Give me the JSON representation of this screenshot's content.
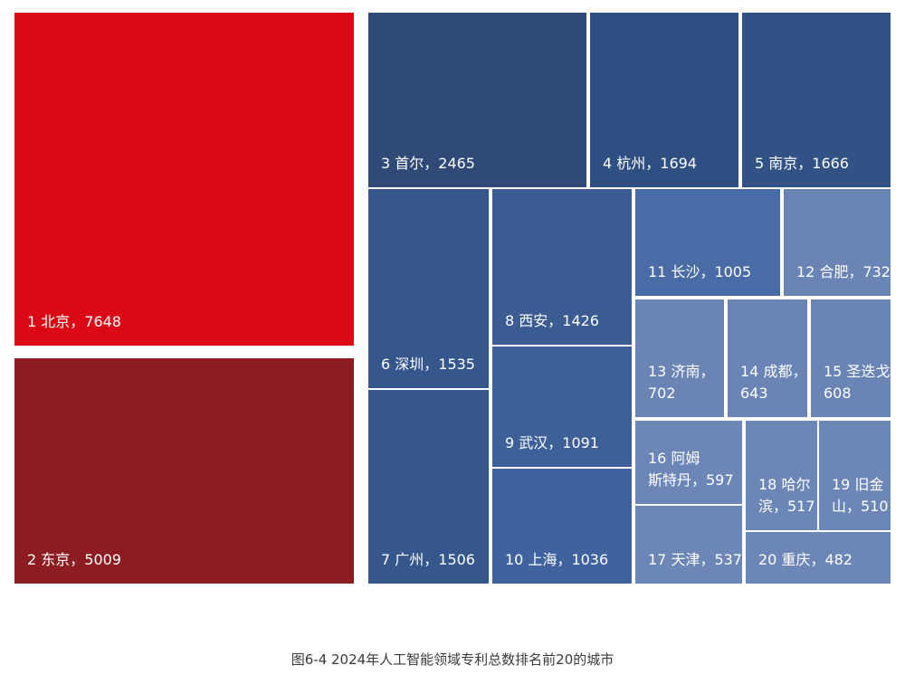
{
  "chart_data": {
    "type": "treemap",
    "title": "图6-4 2024年人工智能领域专利总数排名前20的城市",
    "items": [
      {
        "rank": 1,
        "city": "北京",
        "value": 7648,
        "color": "#db0816"
      },
      {
        "rank": 2,
        "city": "东京",
        "value": 5009,
        "color": "#8c1c22"
      },
      {
        "rank": 3,
        "city": "首尔",
        "value": 2465,
        "color": "#2f4a77"
      },
      {
        "rank": 4,
        "city": "杭州",
        "value": 1694,
        "color": "#2f4f82"
      },
      {
        "rank": 5,
        "city": "南京",
        "value": 1666,
        "color": "#325285"
      },
      {
        "rank": 6,
        "city": "深圳",
        "value": 1535,
        "color": "#36578b"
      },
      {
        "rank": 7,
        "city": "广州",
        "value": 1506,
        "color": "#36578b"
      },
      {
        "rank": 8,
        "city": "西安",
        "value": 1426,
        "color": "#3a5c92"
      },
      {
        "rank": 9,
        "city": "武汉",
        "value": 1091,
        "color": "#3d6099"
      },
      {
        "rank": 10,
        "city": "上海",
        "value": 1036,
        "color": "#4063a0"
      },
      {
        "rank": 11,
        "city": "长沙",
        "value": 1005,
        "color": "#4a6ca6"
      },
      {
        "rank": 12,
        "city": "合肥",
        "value": 732,
        "color": "#6a84b6"
      },
      {
        "rank": 13,
        "city": "济南",
        "value": 702,
        "color": "#6a84b6"
      },
      {
        "rank": 14,
        "city": "成都",
        "value": 643,
        "color": "#6a84b6"
      },
      {
        "rank": 15,
        "city": "圣迭戈",
        "value": 608,
        "color": "#6a84b6"
      },
      {
        "rank": 16,
        "city": "阿姆斯特丹",
        "value": 597,
        "color": "#6d86b8"
      },
      {
        "rank": 17,
        "city": "天津",
        "value": 537,
        "color": "#6d86b8"
      },
      {
        "rank": 18,
        "city": "哈尔滨",
        "value": 517,
        "color": "#6d86b8"
      },
      {
        "rank": 19,
        "city": "旧金山",
        "value": 510,
        "color": "#6d86b8"
      },
      {
        "rank": 20,
        "city": "重庆",
        "value": 482,
        "color": "#6d86b8"
      }
    ]
  }
}
